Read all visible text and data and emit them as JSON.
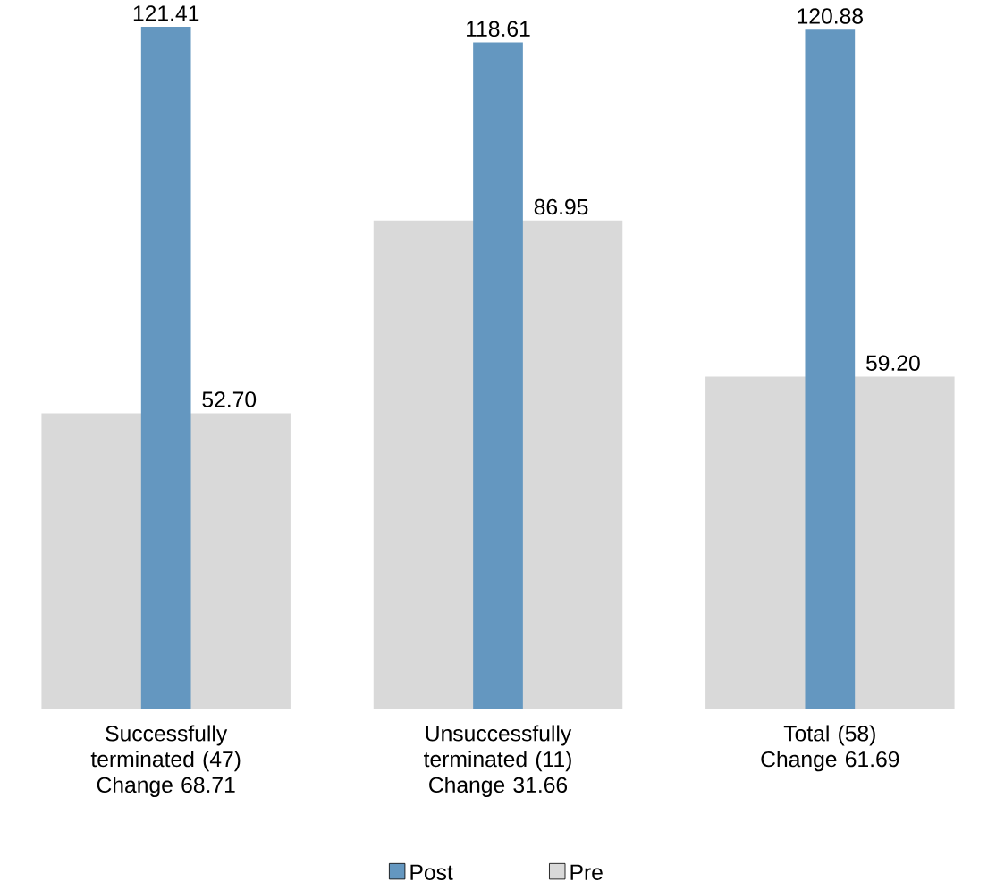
{
  "chart_data": {
    "type": "bar",
    "categories": [
      "Successfully terminated (47) Change 68.71",
      "Unsuccessfully terminated (11) Change 31.66",
      "Total (58) Change 61.69"
    ],
    "series": [
      {
        "name": "Post",
        "color": "#6497c0",
        "values": [
          121.41,
          118.61,
          120.88
        ],
        "value_labels": [
          "121.41",
          "118.61",
          "120.88"
        ]
      },
      {
        "name": "Pre",
        "color": "#d9d9d9",
        "values": [
          52.7,
          86.95,
          59.2
        ],
        "value_labels": [
          "52.70",
          "86.95",
          "59.20"
        ]
      }
    ],
    "legend": "bottom"
  }
}
